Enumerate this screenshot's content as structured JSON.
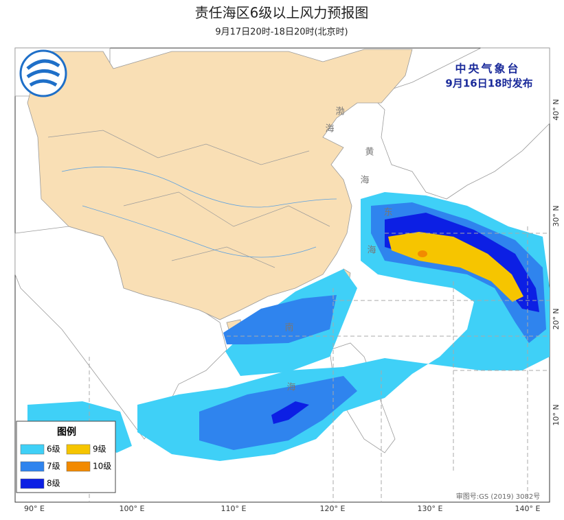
{
  "header": {
    "title": "责任海区6级以上风力预报图",
    "subtitle": "9月17日20时-18日20时(北京时)"
  },
  "issuer": {
    "agency": "中央气象台",
    "issued": "9月16日18时发布"
  },
  "legend": {
    "title": "图例",
    "items": [
      {
        "label": "6级",
        "color": "#3fd0f7"
      },
      {
        "label": "7级",
        "color": "#2f84ee"
      },
      {
        "label": "8级",
        "color": "#0c1fe4"
      },
      {
        "label": "9级",
        "color": "#f6c500"
      },
      {
        "label": "10级",
        "color": "#f28a00"
      }
    ]
  },
  "sea_labels": [
    "渤",
    "海",
    "黄",
    "海",
    "东",
    "海",
    "南",
    "海"
  ],
  "axes": {
    "lon_labels": [
      "90° E",
      "100° E",
      "110° E",
      "120° E",
      "130° E",
      "140° E"
    ],
    "lat_labels": [
      "40° N",
      "30° N",
      "20° N",
      "10° N"
    ]
  },
  "approval": "审图号:GS (2019) 3082号"
}
